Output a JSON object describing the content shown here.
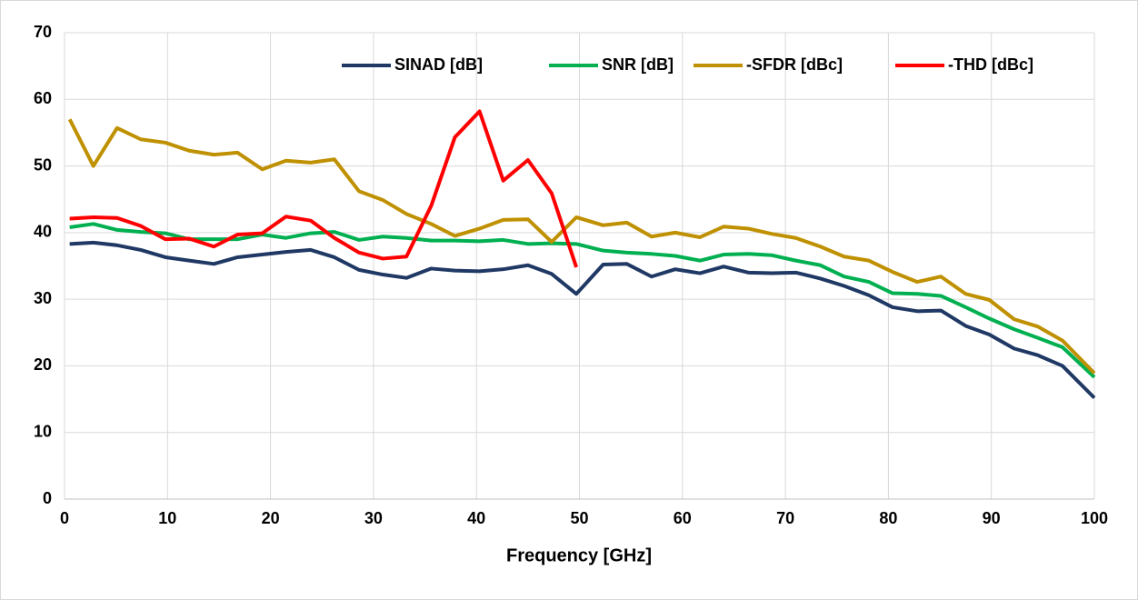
{
  "chart_data": {
    "type": "line",
    "x_label": "Frequency [GHz]",
    "x": [
      0.5,
      2.8,
      5.1,
      7.4,
      9.8,
      12.1,
      14.5,
      16.8,
      19.2,
      21.5,
      23.9,
      26.2,
      28.6,
      30.9,
      33.2,
      35.6,
      37.9,
      40.3,
      42.6,
      45,
      47.3,
      49.7,
      52.3,
      54.6,
      57,
      59.3,
      61.7,
      64,
      66.4,
      68.7,
      71,
      73.4,
      75.7,
      78.1,
      80.4,
      82.8,
      85.1,
      87.5,
      89.8,
      92.2,
      94.5,
      96.9,
      100
    ],
    "series": [
      {
        "name": "SINAD [dB]",
        "color": "#1f3864",
        "values": [
          38.3,
          38.5,
          38.1,
          37.4,
          36.3,
          35.8,
          35.3,
          36.3,
          36.7,
          37.1,
          37.4,
          36.3,
          34.4,
          33.7,
          33.2,
          34.6,
          34.3,
          34.2,
          34.5,
          35.1,
          33.8,
          30.8,
          35.2,
          35.3,
          33.4,
          34.5,
          33.9,
          34.9,
          34,
          33.9,
          34,
          33.1,
          32,
          30.6,
          28.8,
          28.2,
          28.3,
          26,
          24.7,
          22.6,
          21.6,
          20,
          15.2
        ]
      },
      {
        "name": "SNR [dB]",
        "color": "#00b050",
        "values": [
          40.8,
          41.3,
          40.4,
          40.1,
          39.9,
          39,
          39,
          39,
          39.7,
          39.2,
          39.9,
          40.1,
          38.9,
          39.4,
          39.2,
          38.8,
          38.8,
          38.7,
          38.9,
          38.3,
          38.4,
          38.3,
          37.3,
          37,
          36.8,
          36.5,
          35.8,
          36.7,
          36.8,
          36.6,
          35.8,
          35.1,
          33.4,
          32.6,
          30.9,
          30.8,
          30.5,
          28.8,
          27.1,
          25.5,
          24.2,
          22.8,
          18.3
        ]
      },
      {
        "name": "-SFDR [dBc]",
        "color": "#bf9000",
        "values": [
          57,
          50,
          55.7,
          54,
          53.5,
          52.3,
          51.7,
          52,
          49.5,
          50.8,
          50.5,
          51,
          46.2,
          44.9,
          42.8,
          41.3,
          39.5,
          40.6,
          41.9,
          42,
          38.6,
          42.3,
          41.1,
          41.5,
          39.4,
          40,
          39.3,
          40.9,
          40.6,
          39.8,
          39.2,
          37.9,
          36.4,
          35.8,
          34.1,
          32.6,
          33.4,
          30.8,
          29.9,
          27,
          25.9,
          23.8,
          18.9
        ]
      },
      {
        "name": "-THD [dBc]",
        "color": "#ff0000",
        "values": [
          42.1,
          42.3,
          42.2,
          41,
          39,
          39.1,
          37.9,
          39.7,
          39.9,
          42.4,
          41.8,
          39.2,
          37,
          36.1,
          36.4,
          44,
          54.3,
          58.2,
          47.8,
          50.9,
          45.9,
          34.8,
          null,
          null,
          null,
          null,
          null,
          null,
          null,
          null,
          null,
          null,
          null,
          null,
          null,
          null,
          null,
          null,
          null,
          null,
          null,
          null,
          null
        ]
      }
    ],
    "xlim": [
      0,
      100
    ],
    "xticks": [
      0,
      10,
      20,
      30,
      40,
      50,
      60,
      70,
      80,
      90,
      100
    ],
    "ylim": [
      0,
      70
    ],
    "yticks": [
      0,
      10,
      20,
      30,
      40,
      50,
      60,
      70
    ],
    "grid": true,
    "legend": "top-right"
  }
}
